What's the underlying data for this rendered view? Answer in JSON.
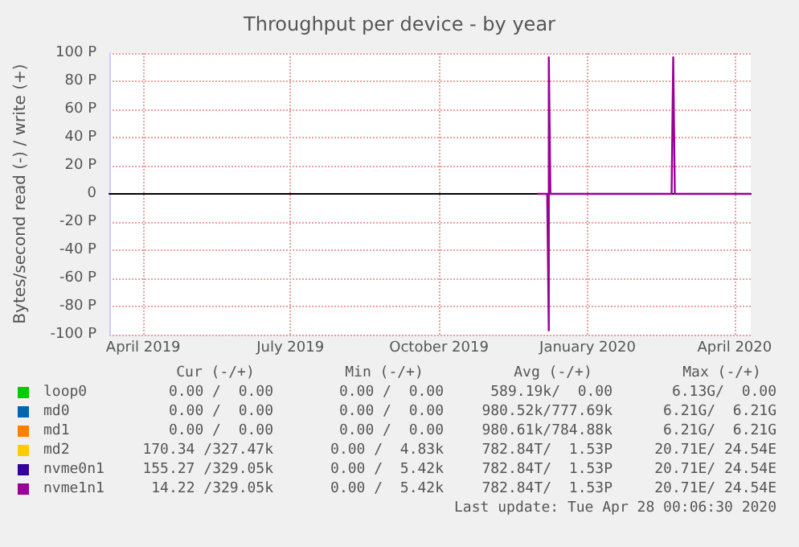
{
  "chart_data": {
    "type": "line",
    "title": "Throughput per device - by year",
    "ylabel": "Bytes/second read (-) / write (+)",
    "xlim": [
      "2019-03-11",
      "2020-04-11"
    ],
    "xticks": [
      {
        "value": "2019-04-01",
        "label": "April 2019"
      },
      {
        "value": "2019-07-01",
        "label": "July 2019"
      },
      {
        "value": "2019-10-01",
        "label": "October 2019"
      },
      {
        "value": "2020-01-01",
        "label": "January 2020"
      },
      {
        "value": "2020-04-01",
        "label": "April 2020"
      }
    ],
    "ylim": [
      -100,
      100
    ],
    "yticks": [
      {
        "value": -100,
        "label": "-100 P"
      },
      {
        "value": -80,
        "label": "-80 P"
      },
      {
        "value": -60,
        "label": "-60 P"
      },
      {
        "value": -40,
        "label": "-40 P"
      },
      {
        "value": -20,
        "label": "-20 P"
      },
      0,
      {
        "value": 20,
        "label": "20 P"
      },
      {
        "value": 40,
        "label": "40 P"
      },
      {
        "value": 60,
        "label": "60 P"
      },
      {
        "value": 80,
        "label": "80 P"
      },
      {
        "value": 100,
        "label": "100 P"
      }
    ],
    "grid": true,
    "legend": "bottom",
    "marker": "none",
    "line_style": "solid",
    "series": [
      {
        "name": "loop0",
        "color": "#00cc00"
      },
      {
        "name": "md0",
        "color": "#0066b3"
      },
      {
        "name": "md1",
        "color": "#ff8000"
      },
      {
        "name": "md2",
        "color": "#ffcc00"
      },
      {
        "name": "nvme0n1",
        "color": "#330099"
      },
      {
        "name": "nvme1n1",
        "color": "#990099",
        "x": [
          "2019-12-01",
          "2019-12-07",
          "2019-12-08",
          "2019-12-08",
          "2019-12-09",
          "2020-02-22",
          "2020-02-23",
          "2020-02-24",
          "2020-04-11"
        ],
        "values": [
          0,
          0,
          -97,
          97,
          0,
          0,
          97,
          0,
          0
        ]
      }
    ],
    "annotations": [
      "Cur (-/+)",
      "Min (-/+)",
      "Avg (-/+)",
      "Max (-/+)",
      "0.00 /  0.00",
      "0.00 /  0.00",
      "589.19k/  0.00",
      "6.13G/  0.00",
      "0.00 /  0.00",
      "0.00 /  0.00",
      "980.52k/777.69k",
      "6.21G/  6.21G",
      "0.00 /  0.00",
      "0.00 /  0.00",
      "980.61k/784.88k",
      "6.21G/  6.21G",
      "170.34 /327.47k",
      "0.00 /  4.83k",
      "782.84T/  1.53P",
      "20.71E/ 24.54E",
      "155.27 /329.05k",
      "0.00 /  5.42k",
      "782.84T/  1.53P",
      "20.71E/ 24.54E",
      "14.22 /329.05k",
      "0.00 /  5.42k",
      "782.84T/  1.53P",
      "20.71E/ 24.54E",
      "Last update: Tue Apr 28 00:06:30 2020"
    ]
  }
}
